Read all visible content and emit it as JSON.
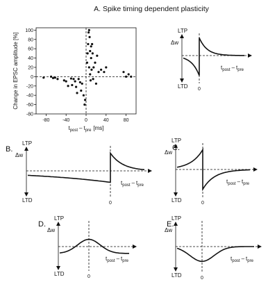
{
  "title": "A. Spike timing dependent plasticity",
  "chart_data": [
    {
      "panel": "A",
      "type": "scatter",
      "ylabel": "Change in EPSC amplitude [%]",
      "xlabel": {
        "t": "t",
        "post": "post",
        "minus": "–",
        "pre": "pre",
        "unit": "[ms]"
      },
      "xlim": [
        -100,
        100
      ],
      "ylim": [
        -80,
        105
      ],
      "xticks": [
        -80,
        -40,
        0,
        40,
        80
      ],
      "yticks": [
        -80,
        -60,
        -40,
        -20,
        0,
        20,
        40,
        60,
        80,
        100
      ],
      "x": [
        -85,
        -70,
        -66,
        -62,
        -57,
        -44,
        -40,
        -36,
        -30,
        -28,
        -25,
        -22,
        -20,
        -18,
        -15,
        -12,
        -10,
        -8,
        -5,
        -3,
        -2,
        2,
        3,
        4,
        5,
        6,
        6,
        7,
        8,
        8,
        9,
        10,
        10,
        11,
        12,
        13,
        14,
        15,
        18,
        20,
        22,
        25,
        30,
        36,
        40,
        75,
        80,
        85,
        90
      ],
      "y": [
        -2,
        0,
        -3,
        -2,
        -5,
        -8,
        -10,
        -20,
        -4,
        -18,
        -5,
        -10,
        -22,
        -35,
        -5,
        -12,
        -30,
        -15,
        -40,
        -60,
        -50,
        30,
        50,
        70,
        95,
        100,
        20,
        85,
        5,
        55,
        -8,
        65,
        40,
        15,
        70,
        50,
        -5,
        20,
        30,
        -15,
        45,
        10,
        15,
        10,
        20,
        10,
        0,
        5,
        0
      ]
    },
    {
      "panel": "",
      "type": "line",
      "ylabel": "Δw",
      "y_top": "LTP",
      "y_bottom": "LTD",
      "xlabel": {
        "t": "t",
        "post": "post",
        "minus": "–",
        "pre": "pre"
      },
      "zero_tick": "0",
      "pos": {
        "amp": 0.8,
        "tau": 0.18,
        "mode": "exp"
      },
      "neg": {
        "amp": -0.9,
        "tau": 0.18,
        "mode": "exp"
      }
    },
    {
      "panel": "B.",
      "type": "line",
      "ylabel": "Δw",
      "y_top": "LTP",
      "y_bottom": "LTD",
      "xlabel": {
        "t": "t",
        "post": "post",
        "minus": "–",
        "pre": "pre"
      },
      "zero_tick": "0",
      "pos": {
        "amp": 0.85,
        "tau": 0.2,
        "mode": "exp"
      },
      "neg": {
        "amp": -0.55,
        "tau": 1.4,
        "mode": "exp"
      }
    },
    {
      "panel": "C.",
      "type": "line",
      "ylabel": "Δw",
      "y_top": "LTP",
      "y_bottom": "LTD",
      "xlabel": {
        "t": "t",
        "post": "post",
        "minus": "–",
        "pre": "pre"
      },
      "zero_tick": "0",
      "pos": {
        "amp": -0.95,
        "tau": 0.25,
        "mode": "exp"
      },
      "neg": {
        "amp": 0.95,
        "tau": 0.25,
        "mode": "exp"
      }
    },
    {
      "panel": "D.",
      "type": "line",
      "ylabel": "Δw",
      "y_top": "LTP",
      "y_bottom": "LTD",
      "xlabel": {
        "t": "t",
        "post": "post",
        "minus": "–",
        "pre": "pre"
      },
      "zero_tick": "0",
      "baseline": -0.38,
      "bump": {
        "amp": 0.78,
        "width": 0.28
      }
    },
    {
      "panel": "E.",
      "type": "line",
      "ylabel": "Δw",
      "y_top": "LTP",
      "y_bottom": "LTD",
      "xlabel": {
        "t": "t",
        "post": "post",
        "minus": "–",
        "pre": "pre"
      },
      "zero_tick": "0",
      "baseline": 0,
      "bump": {
        "amp": -0.82,
        "width": 0.3
      }
    }
  ]
}
